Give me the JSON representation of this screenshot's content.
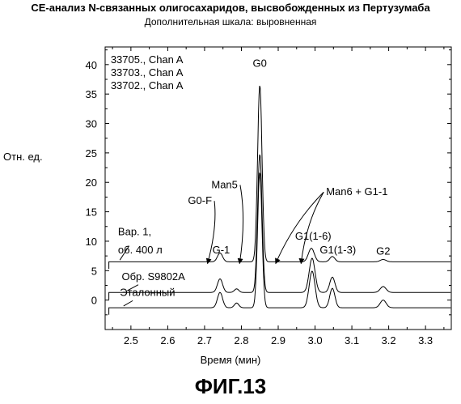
{
  "chart_data": {
    "type": "line",
    "title": "CE-анализ N-связанных олигосахаридов, высвобожденных из Пертузумаба",
    "subtitle": "Дополнительная шкала: выровненная",
    "xlabel": "Время (мин)",
    "ylabel": "Отн. ед.",
    "xlim": [
      2.43,
      3.37
    ],
    "ylim": [
      -5,
      43
    ],
    "xticks": [
      2.5,
      2.6,
      2.7,
      2.8,
      2.9,
      3.0,
      3.1,
      3.2,
      3.3
    ],
    "xtick_labels": [
      "2.5",
      "2.6",
      "2.7",
      "2.8",
      "2.9",
      "3.0",
      "3.1",
      "3.2",
      "3.3"
    ],
    "yticks": [
      0,
      5,
      10,
      15,
      20,
      25,
      30,
      35,
      40
    ],
    "ytick_labels": [
      "0",
      "5",
      "10",
      "15",
      "20",
      "25",
      "30",
      "35",
      "40"
    ],
    "legend": [
      "33705., Chan A",
      "33703., Chan A",
      "33702., Chan A"
    ],
    "legend_position": "top-left",
    "series": [
      {
        "baseline": 6.5,
        "peaks": [
          [
            2.742,
            1.5,
            0.007
          ],
          [
            2.85,
            30.0,
            0.006
          ],
          [
            2.99,
            2.3,
            0.008
          ],
          [
            3.047,
            0.9,
            0.007
          ],
          [
            3.185,
            0.4,
            0.008
          ]
        ]
      },
      {
        "baseline": 1.3,
        "peaks": [
          [
            2.742,
            2.3,
            0.007
          ],
          [
            2.787,
            0.6,
            0.006
          ],
          [
            2.85,
            23.5,
            0.006
          ],
          [
            2.992,
            5.8,
            0.008
          ],
          [
            3.047,
            2.6,
            0.007
          ],
          [
            3.185,
            1.0,
            0.008
          ]
        ]
      },
      {
        "baseline": -1.3,
        "peaks": [
          [
            2.742,
            2.6,
            0.007
          ],
          [
            2.787,
            0.8,
            0.006
          ],
          [
            2.85,
            23.0,
            0.006
          ],
          [
            2.992,
            6.2,
            0.008
          ],
          [
            3.047,
            3.3,
            0.007
          ],
          [
            3.185,
            1.3,
            0.008
          ]
        ]
      }
    ],
    "peak_labels": [
      {
        "text": "G0",
        "x": 2.85,
        "y": 39.6
      },
      {
        "text": "G-1",
        "x": 2.745,
        "y": 7.9
      },
      {
        "text": "G1(1-6)",
        "x": 2.995,
        "y": 10.3
      },
      {
        "text": "G1(1-3)",
        "x": 3.062,
        "y": 7.9
      },
      {
        "text": "G2",
        "x": 3.185,
        "y": 7.7
      }
    ],
    "annotations": [
      {
        "text": "Man5",
        "text_x": 2.79,
        "text_y": 19.0,
        "arrow_to": [
          2.795,
          6.2
        ]
      },
      {
        "text": "G0-F",
        "text_x": 2.72,
        "text_y": 16.3,
        "arrow_to": [
          2.708,
          6.2
        ]
      },
      {
        "text": "Man6 + G1-1",
        "text_x": 3.03,
        "text_y": 17.8,
        "arrow_to": [
          2.893,
          6.2
        ],
        "arrow_to_2": [
          2.962,
          6.2
        ]
      }
    ],
    "trace_labels": [
      {
        "text": "Вар. 1,",
        "x": 2.465,
        "y": 11.0
      },
      {
        "text": "об. 400 л",
        "x": 2.465,
        "y": 7.9
      },
      {
        "text": "Обр. S9802A",
        "x": 2.475,
        "y": 3.4
      },
      {
        "text": "Эталонный",
        "x": 2.47,
        "y": 0.7
      }
    ]
  },
  "figure_label": "ФИГ.13"
}
